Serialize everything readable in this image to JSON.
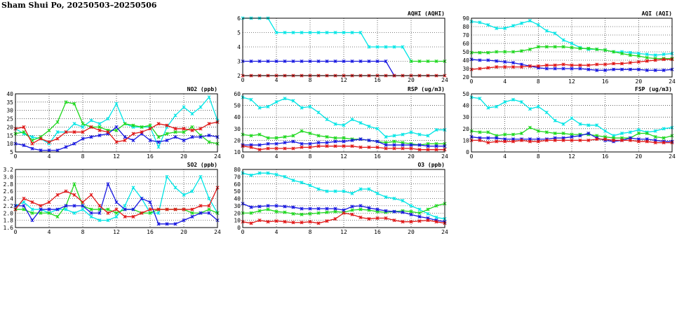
{
  "page": {
    "title": "Sham Shui Po, 20250503–20250506"
  },
  "colors": {
    "cyan": "#00e5e5",
    "green": "#1ed81e",
    "blue": "#1616e0",
    "red": "#e01616"
  },
  "chart_data": [
    {
      "id": "aqhi",
      "type": "line",
      "title": "AQHI (AQHI)",
      "xticks": [
        "0",
        "4",
        "8",
        "12",
        "16",
        "20",
        "24"
      ],
      "xlim": [
        0,
        24
      ],
      "ylim": [
        2,
        6
      ],
      "yticks": [
        "2",
        "3",
        "4",
        "5",
        "6"
      ],
      "grid": true,
      "legend": "none",
      "series": [
        {
          "color": "cyan",
          "x": [
            0,
            1,
            2,
            3,
            4,
            5,
            6,
            7,
            8,
            9,
            10,
            11,
            12,
            13,
            14,
            15,
            16,
            17,
            18,
            19,
            20
          ],
          "values": [
            6,
            6,
            6,
            6,
            5,
            5,
            5,
            5,
            5,
            5,
            5,
            5,
            5,
            5,
            5,
            4,
            4,
            4,
            4,
            4,
            3
          ]
        },
        {
          "color": "green",
          "x": [
            20,
            21,
            22,
            23,
            24
          ],
          "values": [
            3,
            3,
            3,
            3,
            3
          ]
        },
        {
          "color": "blue",
          "x": [
            0,
            1,
            2,
            3,
            4,
            5,
            6,
            7,
            8,
            9,
            10,
            11,
            12,
            13,
            14,
            15,
            16,
            17,
            18
          ],
          "values": [
            3,
            3,
            3,
            3,
            3,
            3,
            3,
            3,
            3,
            3,
            3,
            3,
            3,
            3,
            3,
            3,
            3,
            3,
            2
          ]
        },
        {
          "color": "red",
          "x": [
            0,
            1,
            2,
            3,
            4,
            5,
            6,
            7,
            8,
            9,
            10,
            11,
            12,
            13,
            14,
            15,
            16,
            17,
            18,
            19,
            20,
            21,
            22,
            23,
            24
          ],
          "values": [
            2,
            2,
            2,
            2,
            2,
            2,
            2,
            2,
            2,
            2,
            2,
            2,
            2,
            2,
            2,
            2,
            2,
            2,
            2,
            2,
            2,
            2,
            2,
            2,
            2
          ]
        }
      ]
    },
    {
      "id": "aqi",
      "type": "line",
      "title": "AQI (AQI)",
      "xticks": [
        "0",
        "4",
        "8",
        "12",
        "16",
        "20",
        "24"
      ],
      "xlim": [
        0,
        24
      ],
      "ylim": [
        20,
        90
      ],
      "yticks": [
        "20",
        "30",
        "40",
        "50",
        "60",
        "70",
        "80",
        "90"
      ],
      "grid": true,
      "legend": "none",
      "series": [
        {
          "color": "cyan",
          "values": [
            86,
            85,
            82,
            78,
            78,
            81,
            84,
            87,
            82,
            75,
            72,
            64,
            60,
            55,
            53,
            53,
            52,
            50,
            50,
            49,
            48,
            47,
            46,
            47,
            48
          ]
        },
        {
          "color": "green",
          "values": [
            49,
            49,
            49,
            50,
            50,
            50,
            51,
            53,
            56,
            56,
            56,
            56,
            55,
            54,
            54,
            53,
            52,
            50,
            48,
            46,
            45,
            43,
            42,
            42,
            42
          ]
        },
        {
          "color": "blue",
          "values": [
            41,
            40,
            40,
            39,
            38,
            37,
            35,
            33,
            31,
            30,
            30,
            30,
            30,
            30,
            29,
            28,
            28,
            29,
            29,
            29,
            29,
            28,
            28,
            28,
            29
          ]
        },
        {
          "color": "red",
          "values": [
            29,
            30,
            31,
            32,
            32,
            32,
            32,
            33,
            33,
            34,
            34,
            35,
            34,
            34,
            34,
            35,
            35,
            36,
            36,
            37,
            38,
            39,
            40,
            41,
            41
          ]
        }
      ]
    },
    {
      "id": "no2",
      "type": "line",
      "title": "NO2 (ppb)",
      "xticks": [
        "0",
        "4",
        "8",
        "12",
        "16",
        "20",
        "24"
      ],
      "xlim": [
        0,
        24
      ],
      "ylim": [
        5,
        40
      ],
      "yticks": [
        "5",
        "10",
        "15",
        "20",
        "25",
        "30",
        "35",
        "40"
      ],
      "grid": true,
      "legend": "none",
      "series": [
        {
          "color": "cyan",
          "values": [
            19,
            16,
            14,
            13,
            10,
            17,
            17,
            22,
            20,
            24,
            22,
            25,
            34,
            22,
            20,
            20,
            20,
            8,
            20,
            27,
            32,
            28,
            32,
            38,
            24
          ]
        },
        {
          "color": "green",
          "values": [
            16,
            17,
            12,
            14,
            18,
            23,
            35,
            34,
            22,
            20,
            20,
            18,
            18,
            22,
            21,
            20,
            21,
            14,
            16,
            17,
            17,
            20,
            15,
            11,
            10
          ]
        },
        {
          "color": "blue",
          "values": [
            10,
            9,
            7,
            6,
            6,
            6,
            8,
            10,
            13,
            14,
            15,
            16,
            20,
            14,
            12,
            16,
            12,
            11,
            12,
            14,
            12,
            14,
            14,
            15,
            14
          ]
        },
        {
          "color": "red",
          "values": [
            19,
            20,
            10,
            13,
            11,
            13,
            17,
            17,
            17,
            20,
            18,
            17,
            11,
            12,
            16,
            17,
            19,
            22,
            21,
            19,
            19,
            18,
            19,
            22,
            23
          ]
        }
      ]
    },
    {
      "id": "rsp",
      "type": "line",
      "title": "RSP (ug/m3)",
      "xticks": [
        "0",
        "4",
        "8",
        "12",
        "16",
        "20",
        "24"
      ],
      "xlim": [
        0,
        24
      ],
      "ylim": [
        10,
        60
      ],
      "yticks": [
        "10",
        "20",
        "30",
        "40",
        "50",
        "60"
      ],
      "grid": true,
      "legend": "none",
      "series": [
        {
          "color": "cyan",
          "values": [
            57,
            55,
            48,
            49,
            53,
            56,
            54,
            48,
            49,
            44,
            38,
            34,
            33,
            38,
            35,
            32,
            30,
            23,
            24,
            25,
            27,
            25,
            24,
            29,
            29
          ]
        },
        {
          "color": "green",
          "values": [
            25,
            24,
            25,
            22,
            22,
            23,
            24,
            28,
            26,
            24,
            23,
            22,
            22,
            21,
            21,
            20,
            19,
            18,
            19,
            18,
            17,
            16,
            17,
            17,
            17
          ]
        },
        {
          "color": "blue",
          "values": [
            16,
            16,
            16,
            17,
            17,
            18,
            19,
            17,
            17,
            18,
            18,
            19,
            19,
            20,
            21,
            20,
            19,
            16,
            16,
            16,
            16,
            16,
            15,
            15,
            15
          ]
        },
        {
          "color": "red",
          "values": [
            15,
            14,
            12,
            13,
            13,
            13,
            13,
            14,
            14,
            15,
            15,
            15,
            15,
            15,
            14,
            14,
            14,
            13,
            13,
            13,
            13,
            12,
            12,
            12,
            12
          ]
        }
      ]
    },
    {
      "id": "fsp",
      "type": "line",
      "title": "FSP (ug/m3)",
      "xticks": [
        "0",
        "4",
        "8",
        "12",
        "16",
        "20",
        "24"
      ],
      "xlim": [
        0,
        24
      ],
      "ylim": [
        0,
        50
      ],
      "yticks": [
        "0",
        "10",
        "20",
        "30",
        "40",
        "50"
      ],
      "grid": true,
      "legend": "none",
      "series": [
        {
          "color": "cyan",
          "values": [
            47,
            46,
            38,
            39,
            43,
            45,
            43,
            37,
            39,
            34,
            27,
            24,
            29,
            24,
            23,
            23,
            18,
            14,
            16,
            17,
            19,
            17,
            18,
            20,
            21
          ]
        },
        {
          "color": "green",
          "values": [
            18,
            17,
            17,
            14,
            15,
            15,
            16,
            21,
            18,
            17,
            16,
            16,
            15,
            15,
            15,
            14,
            13,
            12,
            12,
            12,
            16,
            16,
            13,
            12,
            14
          ]
        },
        {
          "color": "blue",
          "values": [
            13,
            12,
            12,
            12,
            11,
            11,
            11,
            11,
            11,
            11,
            12,
            12,
            13,
            14,
            16,
            12,
            10,
            9,
            10,
            12,
            11,
            11,
            10,
            9,
            9
          ]
        },
        {
          "color": "red",
          "values": [
            10,
            10,
            8,
            9,
            9,
            9,
            10,
            9,
            9,
            10,
            10,
            10,
            10,
            10,
            10,
            11,
            11,
            10,
            10,
            10,
            9,
            9,
            8,
            8,
            8
          ]
        }
      ]
    },
    {
      "id": "so2",
      "type": "line",
      "title": "SO2 (ppb)",
      "xticks": [
        "0",
        "4",
        "8",
        "12",
        "16",
        "20",
        "24"
      ],
      "xlim": [
        0,
        24
      ],
      "ylim": [
        1.6,
        3.2
      ],
      "yticks": [
        "1.6",
        "1.8",
        "2.0",
        "2.2",
        "2.4",
        "2.6",
        "2.8",
        "3.0",
        "3.2"
      ],
      "grid": true,
      "legend": "none",
      "series": [
        {
          "color": "cyan",
          "values": [
            2.2,
            2.3,
            2.1,
            2.1,
            2.0,
            2.1,
            2.1,
            2.0,
            2.1,
            1.9,
            1.8,
            1.8,
            1.9,
            2.2,
            2.7,
            2.4,
            2.0,
            2.0,
            3.0,
            2.7,
            2.5,
            2.6,
            3.0,
            2.4,
            2.0
          ]
        },
        {
          "color": "green",
          "values": [
            2.1,
            2.1,
            2.0,
            2.0,
            2.0,
            1.9,
            2.2,
            2.8,
            2.2,
            2.1,
            2.1,
            2.1,
            2.0,
            2.1,
            2.1,
            2.0,
            2.0,
            2.1,
            2.1,
            2.1,
            2.1,
            2.0,
            2.0,
            2.1,
            2.0
          ]
        },
        {
          "color": "blue",
          "values": [
            2.2,
            2.2,
            1.8,
            2.1,
            2.1,
            2.1,
            2.2,
            2.2,
            2.2,
            2.0,
            2.0,
            2.8,
            2.3,
            2.1,
            2.1,
            2.4,
            2.3,
            1.7,
            1.7,
            1.7,
            1.8,
            1.9,
            2.0,
            2.0,
            1.8
          ]
        },
        {
          "color": "red",
          "values": [
            2.1,
            2.4,
            2.3,
            2.2,
            2.3,
            2.5,
            2.6,
            2.5,
            2.3,
            2.5,
            2.2,
            2.0,
            2.1,
            1.9,
            1.9,
            2.0,
            2.1,
            2.1,
            2.1,
            2.1,
            2.1,
            2.1,
            2.2,
            2.2,
            2.7
          ]
        }
      ]
    },
    {
      "id": "o3",
      "type": "line",
      "title": "O3 (ppb)",
      "xticks": [
        "0",
        "4",
        "8",
        "12",
        "16",
        "20",
        "24"
      ],
      "xlim": [
        0,
        24
      ],
      "ylim": [
        0,
        80
      ],
      "yticks": [
        "0",
        "10",
        "20",
        "30",
        "40",
        "50",
        "60",
        "70",
        "80"
      ],
      "grid": true,
      "legend": "none",
      "series": [
        {
          "color": "cyan",
          "values": [
            75,
            72,
            75,
            75,
            73,
            70,
            65,
            62,
            58,
            53,
            50,
            50,
            50,
            47,
            53,
            53,
            47,
            42,
            40,
            37,
            30,
            25,
            19,
            14,
            12
          ]
        },
        {
          "color": "green",
          "values": [
            20,
            20,
            23,
            25,
            22,
            21,
            19,
            18,
            19,
            20,
            21,
            22,
            21,
            24,
            25,
            24,
            22,
            21,
            22,
            23,
            22,
            20,
            25,
            30,
            33
          ]
        },
        {
          "color": "blue",
          "values": [
            33,
            28,
            29,
            30,
            30,
            29,
            28,
            26,
            26,
            26,
            26,
            26,
            24,
            29,
            30,
            27,
            25,
            23,
            22,
            21,
            18,
            15,
            13,
            10,
            8
          ]
        },
        {
          "color": "red",
          "values": [
            8,
            6,
            10,
            8,
            9,
            8,
            7,
            7,
            8,
            6,
            9,
            12,
            20,
            18,
            14,
            12,
            13,
            13,
            10,
            8,
            8,
            9,
            10,
            8,
            6
          ]
        }
      ]
    }
  ]
}
